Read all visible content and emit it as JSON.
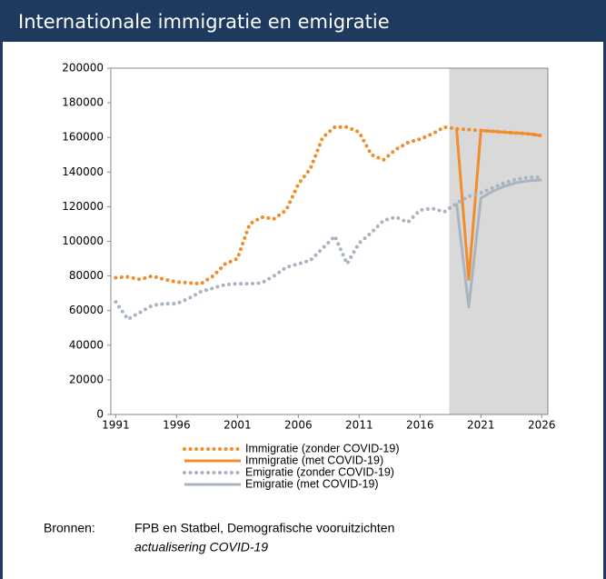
{
  "chart_data": {
    "type": "line",
    "title": "Internationale immigratie en emigratie",
    "x": [
      1991,
      1992,
      1993,
      1994,
      1995,
      1996,
      1997,
      1998,
      1999,
      2000,
      2001,
      2002,
      2003,
      2004,
      2005,
      2006,
      2007,
      2008,
      2009,
      2010,
      2011,
      2012,
      2013,
      2014,
      2015,
      2016,
      2017,
      2018,
      2019,
      2020,
      2021,
      2022,
      2023,
      2024,
      2025,
      2026
    ],
    "series": [
      {
        "name": "Immigratie (zonder COVID-19)",
        "color": "#f28c28",
        "style": "dotted",
        "values": [
          79000,
          79500,
          78000,
          80000,
          78000,
          76500,
          76000,
          75500,
          80000,
          87000,
          90000,
          110000,
          114000,
          113000,
          118000,
          133000,
          142000,
          160000,
          166000,
          166000,
          163000,
          150000,
          147000,
          153000,
          157000,
          159000,
          162000,
          166000,
          165000,
          164500,
          164000,
          163500,
          163000,
          162500,
          162000,
          161000
        ]
      },
      {
        "name": "Immigratie (met COVID-19)",
        "color": "#f28c28",
        "style": "solid",
        "values": [
          null,
          null,
          null,
          null,
          null,
          null,
          null,
          null,
          null,
          null,
          null,
          null,
          null,
          null,
          null,
          null,
          null,
          null,
          null,
          null,
          null,
          null,
          null,
          null,
          null,
          null,
          null,
          null,
          165000,
          78000,
          164000,
          163500,
          163000,
          162500,
          162000,
          161000
        ]
      },
      {
        "name": "Emigratie (zonder COVID-19)",
        "color": "#a9b4c2",
        "style": "dotted",
        "values": [
          65000,
          55000,
          59000,
          63000,
          64000,
          64000,
          67000,
          71000,
          73000,
          75000,
          75500,
          75500,
          76000,
          80000,
          85000,
          87000,
          89000,
          96000,
          103000,
          87000,
          99000,
          105000,
          112000,
          114000,
          111000,
          118000,
          119000,
          117000,
          122000,
          126000,
          128000,
          131000,
          134000,
          136000,
          137000,
          137000
        ]
      },
      {
        "name": "Emigratie (met COVID-19)",
        "color": "#a9b4c2",
        "style": "solid",
        "values": [
          null,
          null,
          null,
          null,
          null,
          null,
          null,
          null,
          null,
          null,
          null,
          null,
          null,
          null,
          null,
          null,
          null,
          null,
          null,
          null,
          null,
          null,
          null,
          null,
          null,
          null,
          null,
          null,
          122000,
          62000,
          125000,
          129000,
          132000,
          134000,
          135000,
          135500
        ]
      }
    ],
    "xlim": [
      1990.6,
      2026.5
    ],
    "xticks": [
      1991,
      1996,
      2001,
      2006,
      2011,
      2016,
      2021,
      2026
    ],
    "ylim": [
      0,
      200000
    ],
    "yticks": [
      0,
      20000,
      40000,
      60000,
      80000,
      100000,
      120000,
      140000,
      160000,
      180000,
      200000
    ],
    "shade_from": 2018.4,
    "shade_color": "#d9d9d9",
    "source_label": "Bronnen:",
    "source": [
      "FPB en Statbel, Demografische vooruitzichten",
      "actualisering COVID-19"
    ]
  }
}
